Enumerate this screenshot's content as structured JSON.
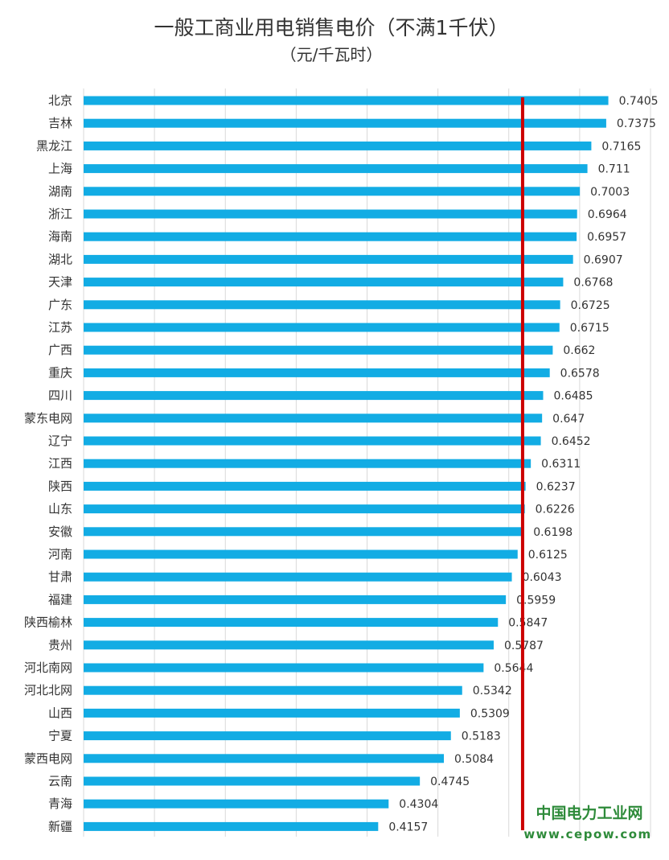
{
  "chart_data": {
    "type": "bar",
    "orientation": "horizontal",
    "title": "一般工商业用电销售电价（不满1千伏）",
    "subtitle": "（元/千瓦时）",
    "categories": [
      "北京",
      "吉林",
      "黑龙江",
      "上海",
      "湖南",
      "浙江",
      "海南",
      "湖北",
      "天津",
      "广东",
      "江苏",
      "广西",
      "重庆",
      "四川",
      "蒙东电网",
      "辽宁",
      "江西",
      "陕西",
      "山东",
      "安徽",
      "河南",
      "甘肃",
      "福建",
      "陕西榆林",
      "贵州",
      "河北南网",
      "河北北网",
      "山西",
      "宁夏",
      "蒙西电网",
      "云南",
      "青海",
      "新疆"
    ],
    "values": [
      0.7405,
      0.7375,
      0.7165,
      0.711,
      0.7003,
      0.6964,
      0.6957,
      0.6907,
      0.6768,
      0.6725,
      0.6715,
      0.662,
      0.6578,
      0.6485,
      0.647,
      0.6452,
      0.6311,
      0.6237,
      0.6226,
      0.6198,
      0.6125,
      0.6043,
      0.5959,
      0.5847,
      0.5787,
      0.5644,
      0.5342,
      0.5309,
      0.5183,
      0.5084,
      0.4745,
      0.4304,
      0.4157
    ],
    "value_labels": [
      "0.7405",
      "0.7375",
      "0.7165",
      "0.711",
      "0.7003",
      "0.6964",
      "0.6957",
      "0.6907",
      "0.6768",
      "0.6725",
      "0.6715",
      "0.662",
      "0.6578",
      "0.6485",
      "0.647",
      "0.6452",
      "0.6311",
      "0.6237",
      "0.6226",
      "0.6198",
      "0.6125",
      "0.6043",
      "0.5959",
      "0.5847",
      "0.5787",
      "0.5644",
      "0.5342",
      "0.5309",
      "0.5183",
      "0.5084",
      "0.4745",
      "0.4304",
      "0.4157"
    ],
    "xlim": [
      0,
      0.8
    ],
    "x_gridlines": [
      0,
      0.1,
      0.2,
      0.3,
      0.4,
      0.5,
      0.6,
      0.7,
      0.8
    ],
    "reference_line_value": 0.6195,
    "grid": true,
    "legend": "none",
    "bar_color": "#12ace4",
    "reference_line_color": "#cc0000"
  },
  "watermark": {
    "name": "中国电力工业网",
    "url": "www.cepow.com",
    "color": "#2e8b3a"
  }
}
